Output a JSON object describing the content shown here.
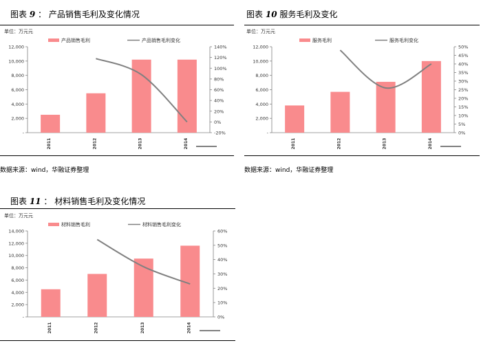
{
  "source_text": "数据来源：wind，华融证券整理",
  "colors": {
    "bar": "#f98b8d",
    "line": "#808080",
    "axis": "#808080",
    "rule": "#000000"
  },
  "chart_data": [
    {
      "type": "bar",
      "fig_prefix": "图表",
      "fig_number": "9",
      "fig_sep": "：",
      "title": "产品销售毛利及变化情况",
      "unit": "单位：万元元",
      "categories": [
        "2011",
        "2012",
        "2013",
        "2014"
      ],
      "series": [
        {
          "name": "产品销售毛利",
          "type": "bar",
          "values": [
            2500,
            5500,
            10200,
            10200
          ]
        },
        {
          "name": "产品销售毛利变化",
          "type": "line",
          "axis": "right",
          "values": [
            null,
            118,
            88,
            0
          ]
        }
      ],
      "ylim": [
        0,
        12000
      ],
      "yticks": [
        0,
        2000,
        4000,
        6000,
        8000,
        10000,
        12000
      ],
      "ytick_labels": [
        "-",
        "2,000",
        "4,000",
        "6,000",
        "8,000",
        "10,000",
        "12,000"
      ],
      "y2lim": [
        -20,
        140
      ],
      "y2ticks": [
        -20,
        0,
        20,
        40,
        60,
        80,
        100,
        120,
        140
      ],
      "y2tick_labels": [
        "-20%",
        "0%",
        "20%",
        "40%",
        "60%",
        "80%",
        "100%",
        "120%",
        "140%"
      ],
      "legend": "top"
    },
    {
      "type": "bar",
      "fig_prefix": "图表",
      "fig_number": "10",
      "fig_sep": "",
      "title": "服务毛利及变化",
      "unit": "单位：万元元",
      "categories": [
        "2011",
        "2012",
        "2013",
        "2014"
      ],
      "series": [
        {
          "name": "服务毛利",
          "type": "bar",
          "values": [
            3800,
            5700,
            7100,
            10000
          ]
        },
        {
          "name": "服务毛利变化",
          "type": "line",
          "axis": "right",
          "values": [
            null,
            48,
            26,
            40
          ]
        }
      ],
      "ylim": [
        0,
        12000
      ],
      "yticks": [
        0,
        2000,
        4000,
        6000,
        8000,
        10000,
        12000
      ],
      "ytick_labels": [
        "-",
        "2,000",
        "4,000",
        "6,000",
        "8,000",
        "10,000",
        "12,000"
      ],
      "y2lim": [
        0,
        50
      ],
      "y2ticks": [
        0,
        5,
        10,
        15,
        20,
        25,
        30,
        35,
        40,
        45,
        50
      ],
      "y2tick_labels": [
        "0%",
        "5%",
        "10%",
        "15%",
        "20%",
        "25%",
        "30%",
        "35%",
        "40%",
        "45%",
        "50%"
      ],
      "legend": "top"
    },
    {
      "type": "bar",
      "fig_prefix": "图表",
      "fig_number": "11",
      "fig_sep": "：",
      "title": "材料销售毛利及变化情况",
      "unit": "单位：万元元",
      "categories": [
        "2011",
        "2012",
        "2013",
        "2014"
      ],
      "series": [
        {
          "name": "材料销售毛利",
          "type": "bar",
          "values": [
            4500,
            7000,
            9500,
            11600
          ]
        },
        {
          "name": "材料销售毛利变化",
          "type": "line",
          "axis": "right",
          "values": [
            null,
            54,
            35,
            23
          ]
        }
      ],
      "ylim": [
        0,
        14000
      ],
      "yticks": [
        0,
        2000,
        4000,
        6000,
        8000,
        10000,
        12000,
        14000
      ],
      "ytick_labels": [
        "-",
        "2,000",
        "4,000",
        "6,000",
        "8,000",
        "10,000",
        "12,000",
        "14,000"
      ],
      "y2lim": [
        0,
        60
      ],
      "y2ticks": [
        0,
        10,
        20,
        30,
        40,
        50,
        60
      ],
      "y2tick_labels": [
        "0%",
        "10%",
        "20%",
        "30%",
        "40%",
        "50%",
        "60%"
      ],
      "legend": "top"
    }
  ]
}
